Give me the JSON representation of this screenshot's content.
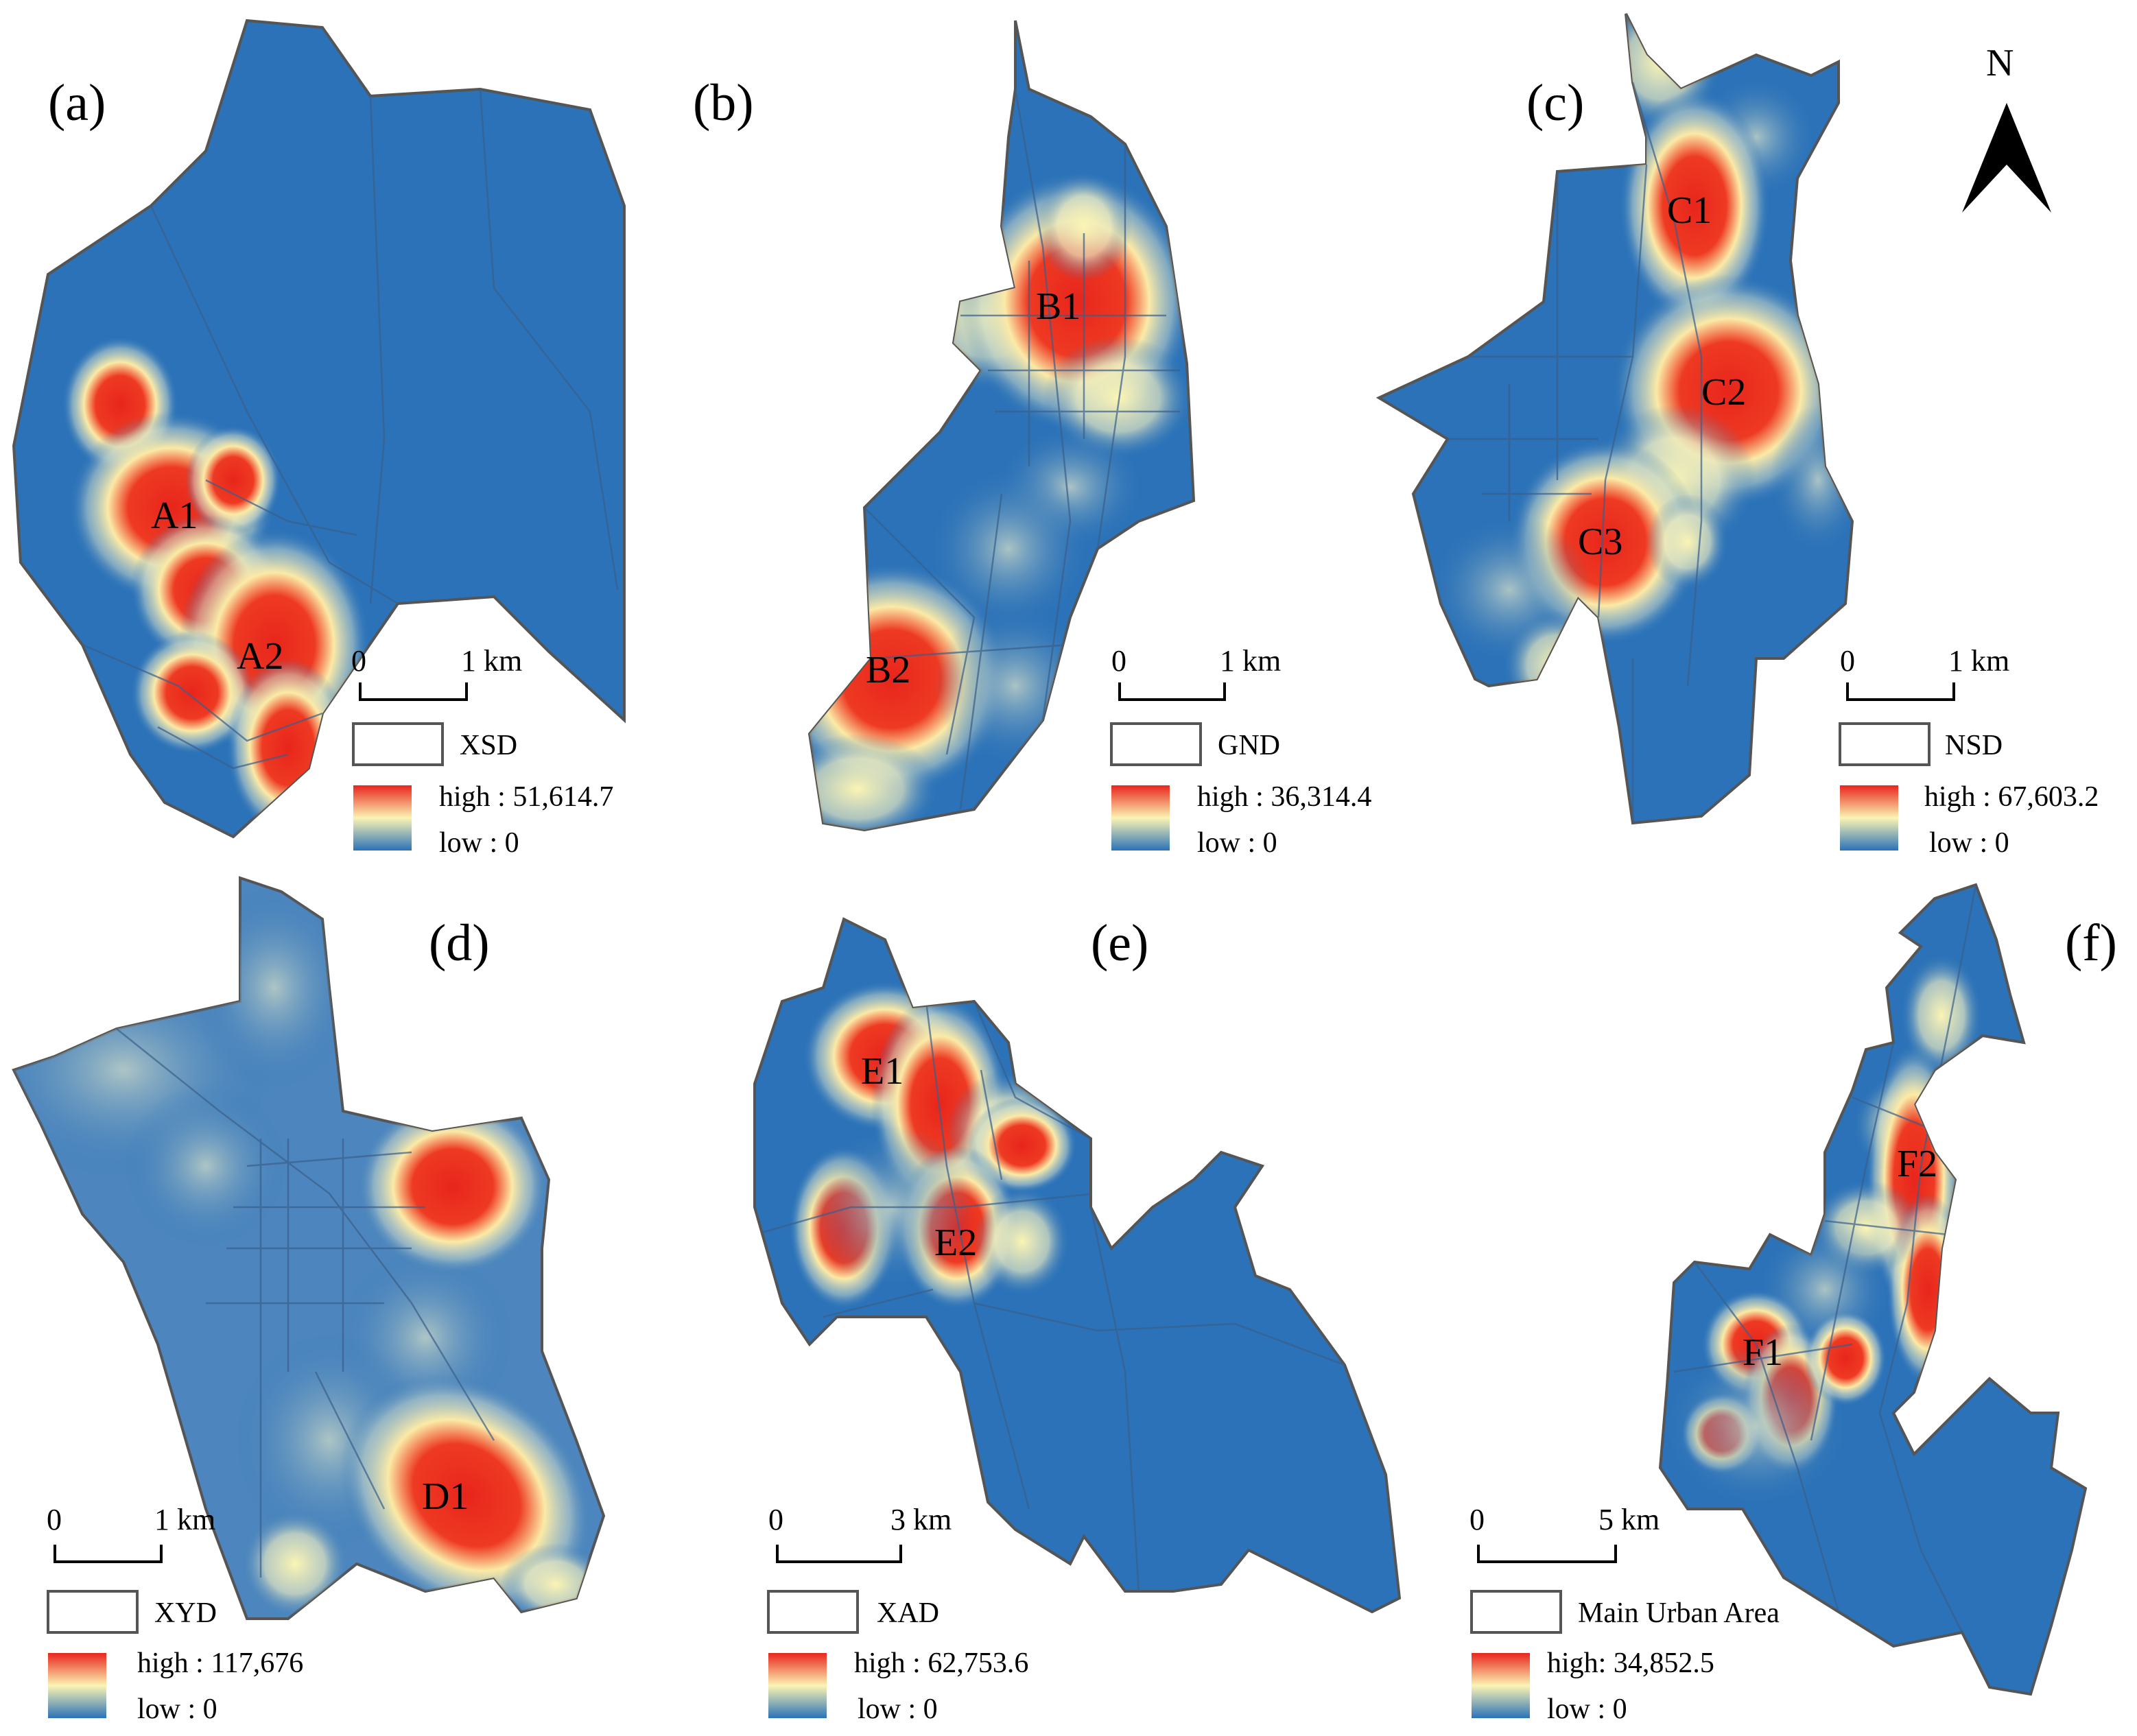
{
  "north_label": "N",
  "panels": [
    {
      "id": "a",
      "label": "(a)",
      "district": "XSD",
      "high_label": "high : 51,614.7",
      "low_label": "low : 0",
      "scale_zero": "0",
      "scale_value": "1 km",
      "clusters": [
        "A1",
        "A2"
      ]
    },
    {
      "id": "b",
      "label": "(b)",
      "district": "GND",
      "high_label": "high : 36,314.4",
      "low_label": "low : 0",
      "scale_zero": "0",
      "scale_value": "1 km",
      "clusters": [
        "B1",
        "B2"
      ]
    },
    {
      "id": "c",
      "label": "(c)",
      "district": "NSD",
      "high_label": "high : 67,603.2",
      "low_label": "low : 0",
      "scale_zero": "0",
      "scale_value": "1 km",
      "clusters": [
        "C1",
        "C2",
        "C3"
      ]
    },
    {
      "id": "d",
      "label": "(d)",
      "district": "XYD",
      "high_label": "high : 117,676",
      "low_label": "low : 0",
      "scale_zero": "0",
      "scale_value": "1 km",
      "clusters": [
        "D1"
      ]
    },
    {
      "id": "e",
      "label": "(e)",
      "district": "XAD",
      "high_label": "high : 62,753.6",
      "low_label": "low : 0",
      "scale_zero": "0",
      "scale_value": "3 km",
      "clusters": [
        "E1",
        "E2"
      ]
    },
    {
      "id": "f",
      "label": "(f)",
      "district": "Main Urban Area",
      "high_label": "high: 34,852.5",
      "low_label": "low : 0",
      "scale_zero": "0",
      "scale_value": "5 km",
      "clusters": [
        "F1",
        "F2"
      ]
    }
  ],
  "colors": {
    "low": "#2b72b8",
    "mid": "#fbf4b4",
    "high": "#e8251c",
    "boundary": "#555555"
  }
}
